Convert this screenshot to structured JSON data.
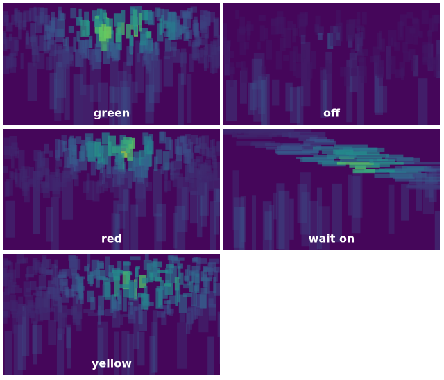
{
  "panels": [
    {
      "label": "green"
    },
    {
      "label": "off"
    },
    {
      "label": "red"
    },
    {
      "label": "wait on"
    },
    {
      "label": "yellow"
    }
  ]
}
